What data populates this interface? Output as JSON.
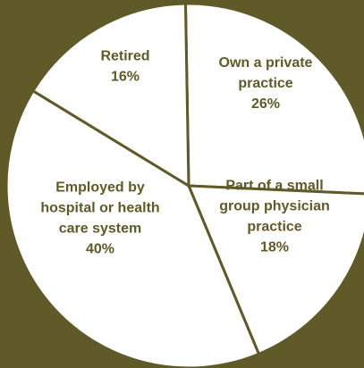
{
  "colors": {
    "background": "#5f5a27",
    "slice_fill": "#ffffff",
    "divider": "#5f5a27",
    "label_text": "#5f5a27"
  },
  "chart_data": {
    "type": "pie",
    "title": "",
    "slices": [
      {
        "label_lines": [
          "Own a private",
          "practice"
        ],
        "value": 26,
        "value_label": "26%"
      },
      {
        "label_lines": [
          "Part of a small",
          "group physician",
          "practice"
        ],
        "value": 18,
        "value_label": "18%"
      },
      {
        "label_lines": [
          "Employed by",
          "hospital or health",
          "care system"
        ],
        "value": 40,
        "value_label": "40%"
      },
      {
        "label_lines": [
          "Retired"
        ],
        "value": 16,
        "value_label": "16%"
      }
    ]
  }
}
